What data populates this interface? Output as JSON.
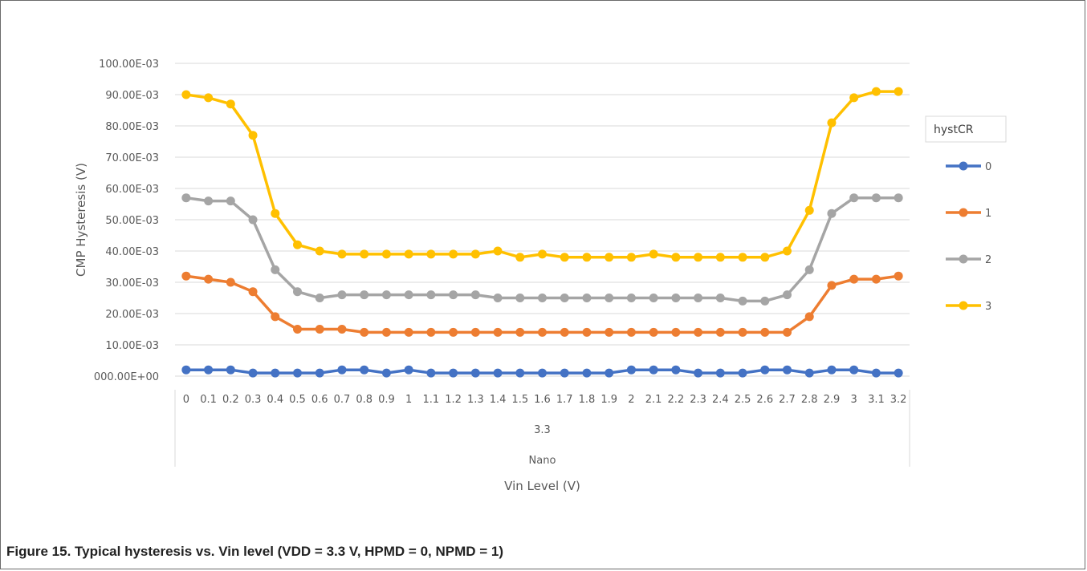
{
  "caption": "Figure 15.  Typical hysteresis vs. Vin level (VDD = 3.3 V, HPMD = 0, NPMD = 1)",
  "chart_data": {
    "type": "line",
    "xlabel": "Vin Level (V)",
    "ylabel": "CMP Hysteresis (V)",
    "ylim": [
      0,
      0.1
    ],
    "grid": true,
    "legend_title": "hystCR",
    "legend_position": "right",
    "categories": [
      "0",
      "0.1",
      "0.2",
      "0.3",
      "0.4",
      "0.5",
      "0.6",
      "0.7",
      "0.8",
      "0.9",
      "1",
      "1.1",
      "1.2",
      "1.3",
      "1.4",
      "1.5",
      "1.6",
      "1.7",
      "1.8",
      "1.9",
      "2",
      "2.1",
      "2.2",
      "2.3",
      "2.4",
      "2.5",
      "2.6",
      "2.7",
      "2.8",
      "2.9",
      "3",
      "3.1",
      "3.2"
    ],
    "group_labels": [
      "3.3",
      "Nano"
    ],
    "y_ticks": [
      {
        "value": 0,
        "label": "000.00E+00"
      },
      {
        "value": 0.01,
        "label": "10.00E-03"
      },
      {
        "value": 0.02,
        "label": "20.00E-03"
      },
      {
        "value": 0.03,
        "label": "30.00E-03"
      },
      {
        "value": 0.04,
        "label": "40.00E-03"
      },
      {
        "value": 0.05,
        "label": "50.00E-03"
      },
      {
        "value": 0.06,
        "label": "60.00E-03"
      },
      {
        "value": 0.07,
        "label": "70.00E-03"
      },
      {
        "value": 0.08,
        "label": "80.00E-03"
      },
      {
        "value": 0.09,
        "label": "90.00E-03"
      },
      {
        "value": 0.1,
        "label": "100.00E-03"
      }
    ],
    "series": [
      {
        "name": "0",
        "color": "#4472c4",
        "values": [
          0.002,
          0.002,
          0.002,
          0.001,
          0.001,
          0.001,
          0.001,
          0.002,
          0.002,
          0.001,
          0.002,
          0.001,
          0.001,
          0.001,
          0.001,
          0.001,
          0.001,
          0.001,
          0.001,
          0.001,
          0.002,
          0.002,
          0.002,
          0.001,
          0.001,
          0.001,
          0.002,
          0.002,
          0.001,
          0.002,
          0.002,
          0.001,
          0.001
        ]
      },
      {
        "name": "1",
        "color": "#ed7d31",
        "values": [
          0.032,
          0.031,
          0.03,
          0.027,
          0.019,
          0.015,
          0.015,
          0.015,
          0.014,
          0.014,
          0.014,
          0.014,
          0.014,
          0.014,
          0.014,
          0.014,
          0.014,
          0.014,
          0.014,
          0.014,
          0.014,
          0.014,
          0.014,
          0.014,
          0.014,
          0.014,
          0.014,
          0.014,
          0.019,
          0.029,
          0.031,
          0.031,
          0.032
        ]
      },
      {
        "name": "2",
        "color": "#a5a5a5",
        "values": [
          0.057,
          0.056,
          0.056,
          0.05,
          0.034,
          0.027,
          0.025,
          0.026,
          0.026,
          0.026,
          0.026,
          0.026,
          0.026,
          0.026,
          0.025,
          0.025,
          0.025,
          0.025,
          0.025,
          0.025,
          0.025,
          0.025,
          0.025,
          0.025,
          0.025,
          0.024,
          0.024,
          0.026,
          0.034,
          0.052,
          0.057,
          0.057,
          0.057
        ]
      },
      {
        "name": "3",
        "color": "#ffc000",
        "values": [
          0.09,
          0.089,
          0.087,
          0.077,
          0.052,
          0.042,
          0.04,
          0.039,
          0.039,
          0.039,
          0.039,
          0.039,
          0.039,
          0.039,
          0.04,
          0.038,
          0.039,
          0.038,
          0.038,
          0.038,
          0.038,
          0.039,
          0.038,
          0.038,
          0.038,
          0.038,
          0.038,
          0.04,
          0.053,
          0.081,
          0.089,
          0.091,
          0.091
        ]
      }
    ]
  }
}
